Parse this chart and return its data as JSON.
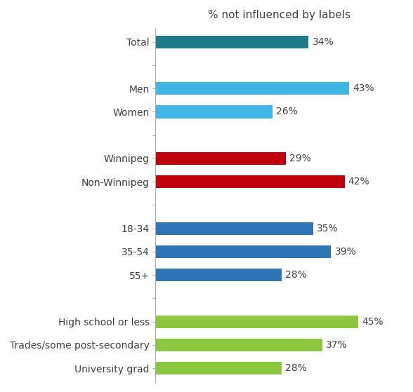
{
  "title": "% not influenced by labels",
  "categories": [
    "Total",
    "",
    "Men",
    "Women",
    " ",
    "Winnipeg",
    "Non-Winnipeg",
    "  ",
    "18-34",
    "35-54",
    "55+",
    "   ",
    "High school or less",
    "Trades/some post-secondary",
    "University grad"
  ],
  "values": [
    34,
    0,
    43,
    26,
    0,
    29,
    42,
    0,
    35,
    39,
    28,
    0,
    45,
    37,
    28
  ],
  "colors": [
    "#1F7A8C",
    "#FFFFFF",
    "#41B6E6",
    "#41B6E6",
    "#FFFFFF",
    "#C0000C",
    "#C0000C",
    "#FFFFFF",
    "#2E75B6",
    "#2E75B6",
    "#2E75B6",
    "#FFFFFF",
    "#8DC63F",
    "#8DC63F",
    "#8DC63F"
  ],
  "bar_height": 0.55,
  "xlim": [
    0,
    55
  ],
  "title_fontsize": 11,
  "label_fontsize": 10,
  "value_fontsize": 10,
  "fig_width": 5.88,
  "fig_height": 5.59,
  "dpi": 100
}
